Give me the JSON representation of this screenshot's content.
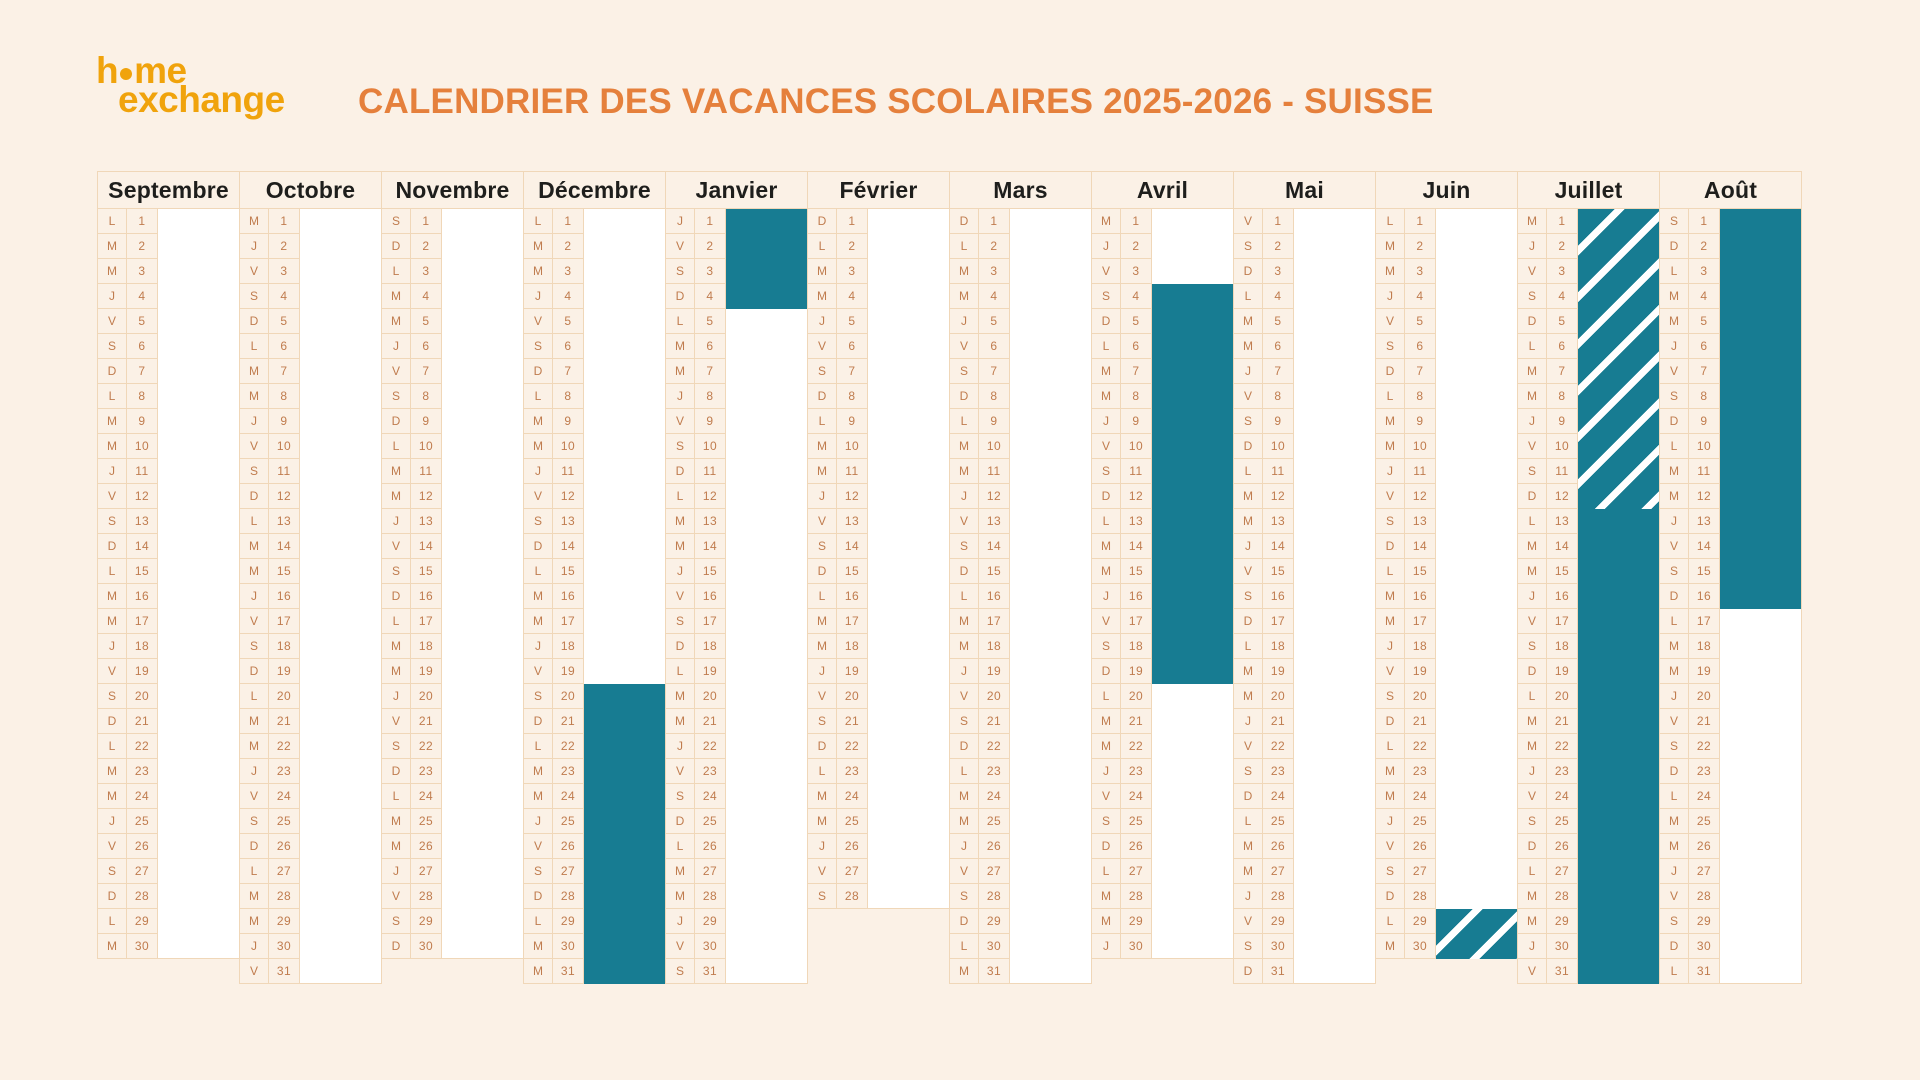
{
  "logo": {
    "line1_h": "h",
    "line1_me": "me",
    "line2": "exchange"
  },
  "title": {
    "text": "CALENDRIER DES VACANCES SCOLAIRES 2025-2026 - SUISSE"
  },
  "colors": {
    "background": "#fbf1e6",
    "grid_line": "#f0d7b8",
    "day_text": "#c07c4e",
    "vacation_teal": "#177c92",
    "title_orange": "#e5803c",
    "logo_orange": "#f0a30c"
  },
  "calendar": {
    "school_year": "2025-2026",
    "country": "SUISSE",
    "months": [
      {
        "name": "Septembre",
        "letters": [
          "L",
          "M",
          "M",
          "J",
          "V",
          "S",
          "D",
          "L",
          "M",
          "M",
          "J",
          "V",
          "S",
          "D",
          "L",
          "M",
          "M",
          "J",
          "V",
          "S",
          "D",
          "L",
          "M",
          "M",
          "J",
          "V",
          "S",
          "D",
          "L",
          "M"
        ],
        "highlights": []
      },
      {
        "name": "Octobre",
        "letters": [
          "M",
          "J",
          "V",
          "S",
          "D",
          "L",
          "M",
          "M",
          "J",
          "V",
          "S",
          "D",
          "L",
          "M",
          "M",
          "J",
          "V",
          "S",
          "D",
          "L",
          "M",
          "M",
          "J",
          "V",
          "S",
          "D",
          "L",
          "M",
          "M",
          "J",
          "V"
        ],
        "highlights": []
      },
      {
        "name": "Novembre",
        "letters": [
          "S",
          "D",
          "L",
          "M",
          "M",
          "J",
          "V",
          "S",
          "D",
          "L",
          "M",
          "M",
          "J",
          "V",
          "S",
          "D",
          "L",
          "M",
          "M",
          "J",
          "V",
          "S",
          "D",
          "L",
          "M",
          "M",
          "J",
          "V",
          "S",
          "D"
        ],
        "highlights": []
      },
      {
        "name": "Décembre",
        "letters": [
          "L",
          "M",
          "M",
          "J",
          "V",
          "S",
          "D",
          "L",
          "M",
          "M",
          "J",
          "V",
          "S",
          "D",
          "L",
          "M",
          "M",
          "J",
          "V",
          "S",
          "D",
          "L",
          "M",
          "M",
          "J",
          "V",
          "S",
          "D",
          "L",
          "M",
          "M"
        ],
        "highlights": [
          {
            "type": "solid",
            "from": 20,
            "to": 31
          }
        ]
      },
      {
        "name": "Janvier",
        "letters": [
          "J",
          "V",
          "S",
          "D",
          "L",
          "M",
          "M",
          "J",
          "V",
          "S",
          "D",
          "L",
          "M",
          "M",
          "J",
          "V",
          "S",
          "D",
          "L",
          "M",
          "M",
          "J",
          "V",
          "S",
          "D",
          "L",
          "M",
          "M",
          "J",
          "V",
          "S"
        ],
        "highlights": [
          {
            "type": "solid",
            "from": 1,
            "to": 4
          }
        ]
      },
      {
        "name": "Février",
        "letters": [
          "D",
          "L",
          "M",
          "M",
          "J",
          "V",
          "S",
          "D",
          "L",
          "M",
          "M",
          "J",
          "V",
          "S",
          "D",
          "L",
          "M",
          "M",
          "J",
          "V",
          "S",
          "D",
          "L",
          "M",
          "M",
          "J",
          "V",
          "S"
        ],
        "highlights": []
      },
      {
        "name": "Mars",
        "letters": [
          "D",
          "L",
          "M",
          "M",
          "J",
          "V",
          "S",
          "D",
          "L",
          "M",
          "M",
          "J",
          "V",
          "S",
          "D",
          "L",
          "M",
          "M",
          "J",
          "V",
          "S",
          "D",
          "L",
          "M",
          "M",
          "J",
          "V",
          "S",
          "D",
          "L",
          "M"
        ],
        "highlights": []
      },
      {
        "name": "Avril",
        "letters": [
          "M",
          "J",
          "V",
          "S",
          "D",
          "L",
          "M",
          "M",
          "J",
          "V",
          "S",
          "D",
          "L",
          "M",
          "M",
          "J",
          "V",
          "S",
          "D",
          "L",
          "M",
          "M",
          "J",
          "V",
          "S",
          "D",
          "L",
          "M",
          "M",
          "J"
        ],
        "highlights": [
          {
            "type": "solid",
            "from": 4,
            "to": 19
          }
        ]
      },
      {
        "name": "Mai",
        "letters": [
          "V",
          "S",
          "D",
          "L",
          "M",
          "M",
          "J",
          "V",
          "S",
          "D",
          "L",
          "M",
          "M",
          "J",
          "V",
          "S",
          "D",
          "L",
          "M",
          "M",
          "J",
          "V",
          "S",
          "D",
          "L",
          "M",
          "M",
          "J",
          "V",
          "S",
          "D"
        ],
        "highlights": []
      },
      {
        "name": "Juin",
        "letters": [
          "L",
          "M",
          "M",
          "J",
          "V",
          "S",
          "D",
          "L",
          "M",
          "M",
          "J",
          "V",
          "S",
          "D",
          "L",
          "M",
          "M",
          "J",
          "V",
          "S",
          "D",
          "L",
          "M",
          "M",
          "J",
          "V",
          "S",
          "D",
          "L",
          "M"
        ],
        "highlights": [
          {
            "type": "hatched",
            "from": 29,
            "to": 30
          }
        ]
      },
      {
        "name": "Juillet",
        "letters": [
          "M",
          "J",
          "V",
          "S",
          "D",
          "L",
          "M",
          "M",
          "J",
          "V",
          "S",
          "D",
          "L",
          "M",
          "M",
          "J",
          "V",
          "S",
          "D",
          "L",
          "M",
          "M",
          "J",
          "V",
          "S",
          "D",
          "L",
          "M",
          "M",
          "J",
          "V"
        ],
        "highlights": [
          {
            "type": "hatched",
            "from": 1,
            "to": 12
          },
          {
            "type": "solid",
            "from": 13,
            "to": 31
          }
        ]
      },
      {
        "name": "Août",
        "letters": [
          "S",
          "D",
          "L",
          "M",
          "M",
          "J",
          "V",
          "S",
          "D",
          "L",
          "M",
          "M",
          "J",
          "V",
          "S",
          "D",
          "L",
          "M",
          "M",
          "J",
          "V",
          "S",
          "D",
          "L",
          "M",
          "M",
          "J",
          "V",
          "S",
          "D",
          "L"
        ],
        "highlights": [
          {
            "type": "solid",
            "from": 1,
            "to": 16
          }
        ]
      }
    ]
  }
}
